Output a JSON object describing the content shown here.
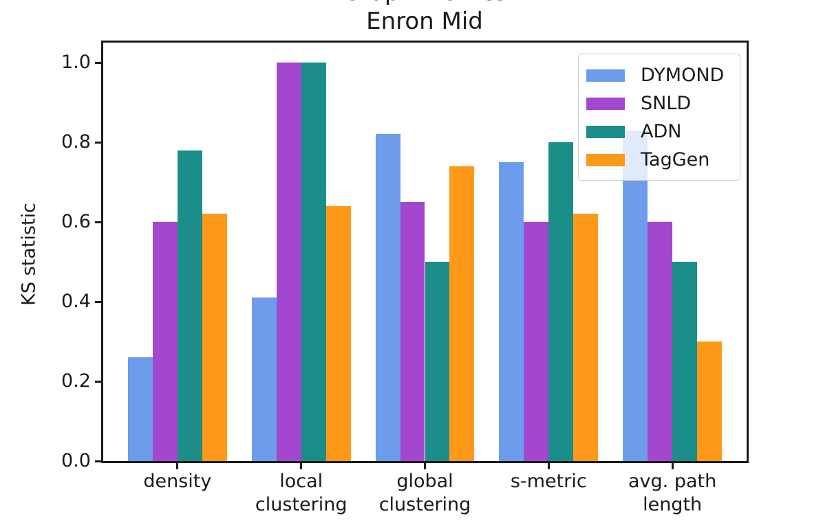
{
  "title": {
    "line1": "Graph Metrics",
    "line2": "Enron Mid"
  },
  "chart_data": {
    "type": "bar",
    "title": "Graph Metrics",
    "subtitle": "Enron Mid",
    "xlabel": "",
    "ylabel": "KS statistic",
    "ylim": [
      0,
      1.05
    ],
    "yticks": [
      0.0,
      0.2,
      0.4,
      0.6,
      0.8,
      1.0
    ],
    "grid": false,
    "legend_position": "upper right",
    "categories": [
      "density",
      "local\nclustering",
      "global\nclustering",
      "s-metric",
      "avg. path\nlength"
    ],
    "series": [
      {
        "name": "DYMOND",
        "color": "#6c9ceb",
        "values": [
          0.26,
          0.41,
          0.82,
          0.75,
          0.83
        ]
      },
      {
        "name": "SNLD",
        "color": "#a347cf",
        "values": [
          0.6,
          1.0,
          0.65,
          0.6,
          0.6
        ]
      },
      {
        "name": "ADN",
        "color": "#1b8e8a",
        "values": [
          0.78,
          1.0,
          0.5,
          0.8,
          0.5
        ]
      },
      {
        "name": "TagGen",
        "color": "#ff9919",
        "values": [
          0.62,
          0.64,
          0.74,
          0.62,
          0.3
        ]
      }
    ]
  }
}
